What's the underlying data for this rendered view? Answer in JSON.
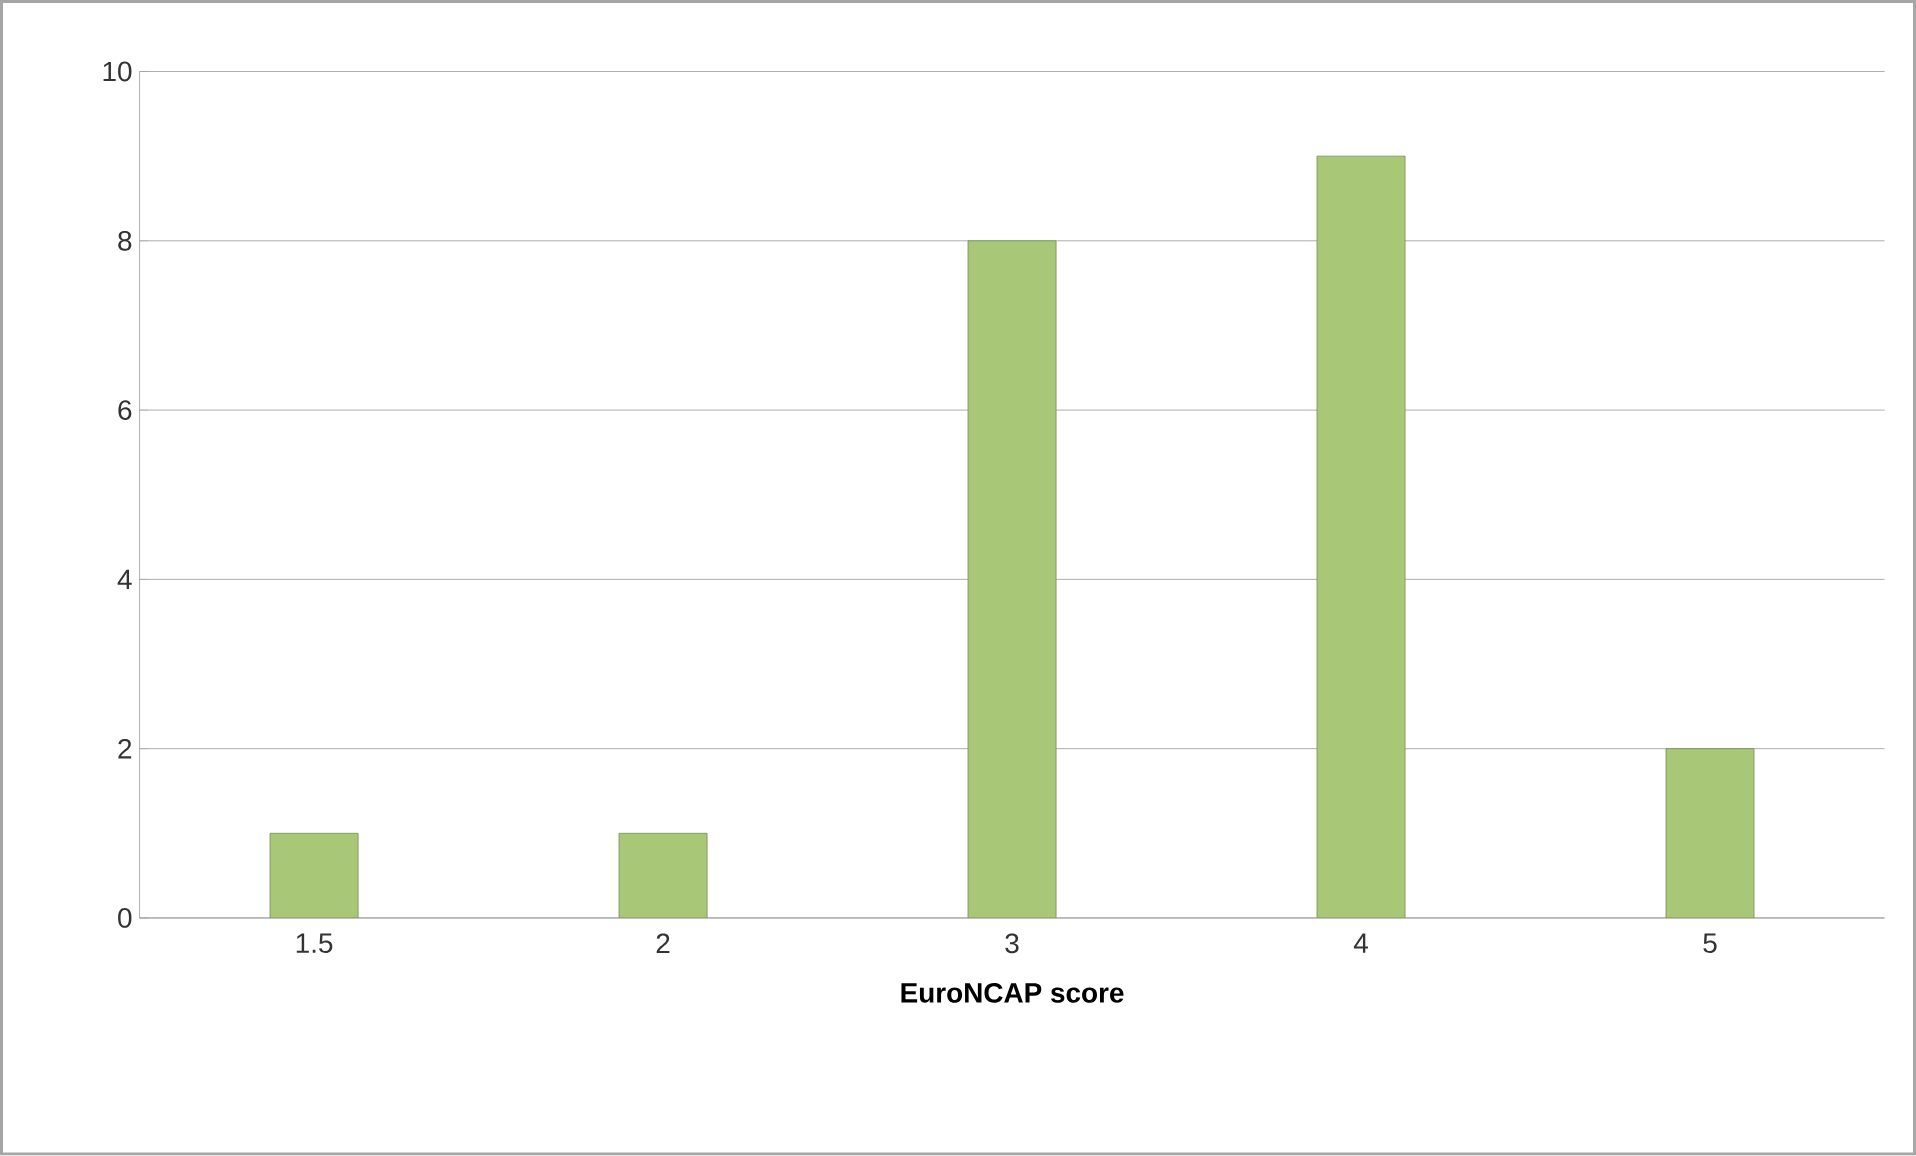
{
  "chart_data": {
    "type": "bar",
    "xlabel": "EuroNCAP score",
    "categories": [
      "1.5",
      "2",
      "3",
      "4",
      "5"
    ],
    "values": [
      1,
      1,
      8,
      9,
      2
    ],
    "color": "#a8c878",
    "ylim": [
      0,
      10
    ],
    "yticks": [
      0,
      2,
      4,
      6,
      8,
      10
    ],
    "grid": "y"
  }
}
